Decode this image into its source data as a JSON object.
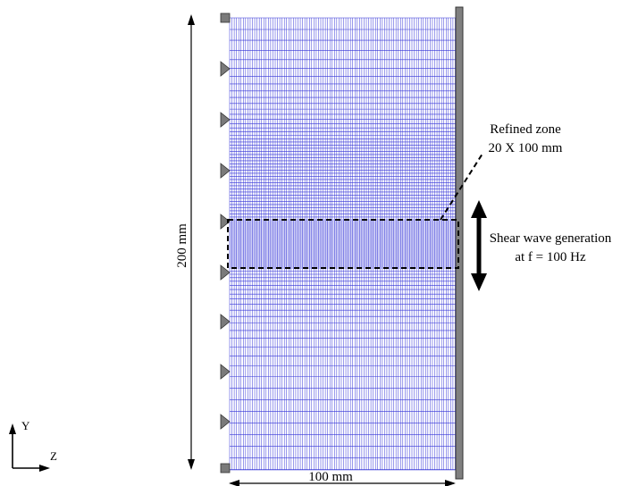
{
  "dimensions": {
    "height_label": "200 mm",
    "width_label": "100 mm"
  },
  "refined_zone": {
    "title": "Refined zone",
    "size": "20 X 100 mm"
  },
  "excitation": {
    "line1": "Shear wave generation",
    "line2": "at f = 100 Hz"
  },
  "axes": {
    "y_label": "Y",
    "z_label": "Z"
  },
  "colors": {
    "mesh": "#3535d8",
    "support": "#7a7a7a",
    "plate": "#808080"
  }
}
